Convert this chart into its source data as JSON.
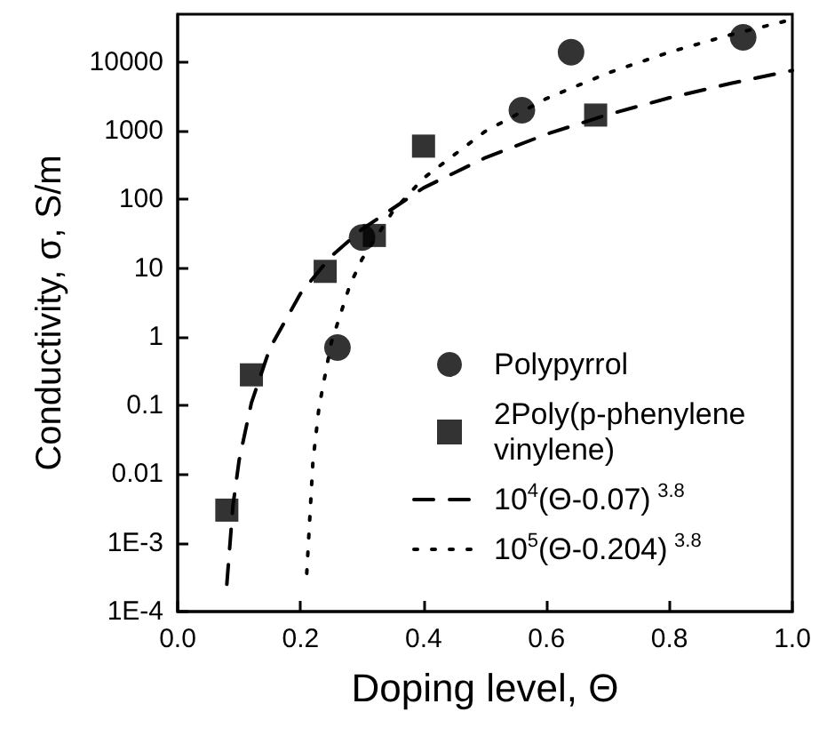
{
  "chart_data": {
    "type": "scatter",
    "xlabel": "Doping level, Θ",
    "ylabel": "Conductivity, σ, S/m",
    "log": "y",
    "xlim": [
      0,
      1
    ],
    "xticks": [
      {
        "value": 0,
        "label": "0.0"
      },
      {
        "value": 0.2,
        "label": "0.2"
      },
      {
        "value": 0.4,
        "label": "0.4"
      },
      {
        "value": 0.6,
        "label": "0.6"
      },
      {
        "value": 0.8,
        "label": "0.8"
      },
      {
        "value": 1,
        "label": "1.0"
      }
    ],
    "ylim": [
      0.0001,
      50000
    ],
    "yticks": [
      {
        "value": 0.0001,
        "label": "1E-4"
      },
      {
        "value": 0.001,
        "label": "1E-3"
      },
      0.01,
      0.1,
      1,
      10,
      100,
      1000,
      10000
    ],
    "grid": false,
    "legend": "bottom right",
    "series": [
      {
        "name": "Polypyrrol",
        "marker": "circle",
        "color": "#000000",
        "x": [
          0.26,
          0.3,
          0.56,
          0.64,
          0.92
        ],
        "values": [
          0.7,
          28,
          2000,
          14000,
          23000
        ]
      },
      {
        "name": "2Poly(p-phenylene vinylene)",
        "marker": "square",
        "color": "#000000",
        "x": [
          0.08,
          0.12,
          0.24,
          0.32,
          0.4,
          0.68
        ],
        "values": [
          0.003,
          0.28,
          9,
          30,
          600,
          1700
        ]
      },
      {
        "name": "10$^{4}$(Θ-0.07)$^{3.8}$",
        "type": "line",
        "marker": "none",
        "line_style": "dashed",
        "color": "#000000",
        "x": [
          0.08,
          0.09,
          0.1,
          0.12,
          0.15,
          0.2,
          0.25,
          0.3,
          0.4,
          0.5,
          0.6,
          0.7,
          0.8,
          0.9,
          1.0
        ],
        "values": [
          0.00025,
          0.0035,
          0.016,
          0.11,
          0.68,
          4.3,
          15,
          37,
          148,
          405,
          895,
          1730,
          3030,
          4920,
          7590
        ]
      },
      {
        "name": "10$^{5}$(Θ-0.204)$^{3.8}$",
        "type": "line",
        "marker": "none",
        "line_style": "dotted",
        "color": "#000000",
        "x": [
          0.21,
          0.22,
          0.23,
          0.25,
          0.28,
          0.3,
          0.35,
          0.4,
          0.5,
          0.6,
          0.7,
          0.8,
          0.9,
          1.0
        ],
        "values": [
          0.00036,
          0.015,
          0.095,
          0.83,
          5.6,
          13.6,
          67,
          205,
          980,
          2960,
          6970,
          14000,
          25200,
          42000
        ]
      }
    ]
  }
}
